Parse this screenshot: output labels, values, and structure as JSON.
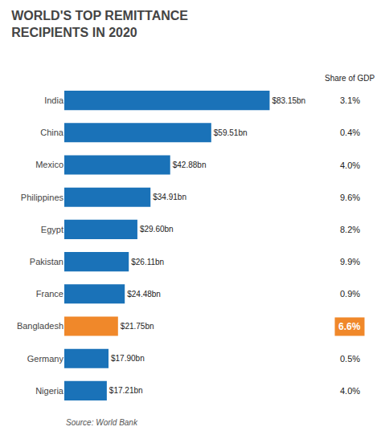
{
  "chart_data": {
    "type": "bar",
    "orientation": "horizontal",
    "title": "WORLD'S TOP REMITTANCE\nRECIPIENTS IN 2020",
    "categories": [
      "India",
      "China",
      "Mexico",
      "Philippines",
      "Egypt",
      "Pakistan",
      "France",
      "Bangladesh",
      "Germany",
      "Nigeria"
    ],
    "values": [
      83.15,
      59.51,
      42.88,
      34.91,
      29.6,
      26.11,
      24.48,
      21.75,
      17.9,
      17.21
    ],
    "value_labels": [
      "$83.15bn",
      "$59.51bn",
      "$42.88bn",
      "$34.91bn",
      "$29.60bn",
      "$26.11bn",
      "$24.48bn",
      "$21.75bn",
      "$17.90bn",
      "$17.21bn"
    ],
    "colors": [
      "#1a72b8",
      "#1a72b8",
      "#1a72b8",
      "#1a72b8",
      "#1a72b8",
      "#1a72b8",
      "#1a72b8",
      "#f0882a",
      "#1a72b8",
      "#1a72b8"
    ],
    "data_labels": true,
    "xlim": [
      0,
      105
    ],
    "tick_labels": "y",
    "grid": false,
    "share_of_gdp": {
      "label": "Share of GDP",
      "values": [
        3.1,
        0.4,
        4.0,
        9.6,
        8.2,
        9.9,
        0.9,
        6.6,
        0.5,
        4.0
      ],
      "value_labels": [
        "3.1%",
        "0.4%",
        "4.0%",
        "9.6%",
        "8.2%",
        "9.9%",
        "0.9%",
        "6.6%",
        "0.5%",
        "4.0%"
      ],
      "colors": [
        null,
        null,
        null,
        null,
        null,
        null,
        null,
        "#f0882a",
        null,
        null
      ]
    },
    "source": "Source: World Bank"
  }
}
